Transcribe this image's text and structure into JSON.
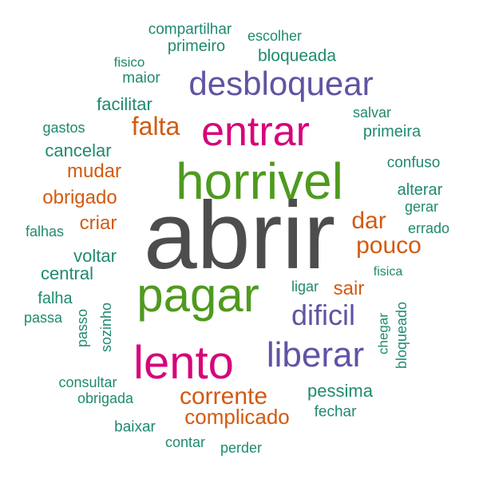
{
  "colors": {
    "gray": "#4d4d4d",
    "green": "#4f9a1e",
    "magenta": "#d6047a",
    "purple": "#6054a3",
    "orange": "#d25a11",
    "teal": "#1f8a6f"
  },
  "words": [
    {
      "text": "abrir",
      "color": "gray"
    },
    {
      "text": "horrivel",
      "color": "green"
    },
    {
      "text": "pagar",
      "color": "green"
    },
    {
      "text": "entrar",
      "color": "magenta"
    },
    {
      "text": "lento",
      "color": "magenta"
    },
    {
      "text": "desbloquear",
      "color": "purple"
    },
    {
      "text": "liberar",
      "color": "purple"
    },
    {
      "text": "dificil",
      "color": "purple"
    },
    {
      "text": "falta",
      "color": "orange"
    },
    {
      "text": "dar",
      "color": "orange"
    },
    {
      "text": "pouco",
      "color": "orange"
    },
    {
      "text": "corrente",
      "color": "orange"
    },
    {
      "text": "complicado",
      "color": "orange"
    },
    {
      "text": "mudar",
      "color": "orange"
    },
    {
      "text": "obrigado",
      "color": "orange"
    },
    {
      "text": "criar",
      "color": "orange"
    },
    {
      "text": "sair",
      "color": "orange"
    },
    {
      "text": "compartilhar",
      "color": "teal"
    },
    {
      "text": "escolher",
      "color": "teal"
    },
    {
      "text": "primeiro",
      "color": "teal"
    },
    {
      "text": "bloqueada",
      "color": "teal"
    },
    {
      "text": "fisico",
      "color": "teal"
    },
    {
      "text": "maior",
      "color": "teal"
    },
    {
      "text": "facilitar",
      "color": "teal"
    },
    {
      "text": "salvar",
      "color": "teal"
    },
    {
      "text": "gastos",
      "color": "teal"
    },
    {
      "text": "primeira",
      "color": "teal"
    },
    {
      "text": "cancelar",
      "color": "teal"
    },
    {
      "text": "confuso",
      "color": "teal"
    },
    {
      "text": "alterar",
      "color": "teal"
    },
    {
      "text": "gerar",
      "color": "teal"
    },
    {
      "text": "falhas",
      "color": "teal"
    },
    {
      "text": "errado",
      "color": "teal"
    },
    {
      "text": "voltar",
      "color": "teal"
    },
    {
      "text": "central",
      "color": "teal"
    },
    {
      "text": "fisica",
      "color": "teal"
    },
    {
      "text": "ligar",
      "color": "teal"
    },
    {
      "text": "falha",
      "color": "teal"
    },
    {
      "text": "passa",
      "color": "teal"
    },
    {
      "text": "passo",
      "color": "teal"
    },
    {
      "text": "sozinho",
      "color": "teal"
    },
    {
      "text": "chegar",
      "color": "teal"
    },
    {
      "text": "bloqueado",
      "color": "teal"
    },
    {
      "text": "consultar",
      "color": "teal"
    },
    {
      "text": "obrigada",
      "color": "teal"
    },
    {
      "text": "pessima",
      "color": "teal"
    },
    {
      "text": "fechar",
      "color": "teal"
    },
    {
      "text": "baixar",
      "color": "teal"
    },
    {
      "text": "contar",
      "color": "teal"
    },
    {
      "text": "perder",
      "color": "teal"
    }
  ]
}
